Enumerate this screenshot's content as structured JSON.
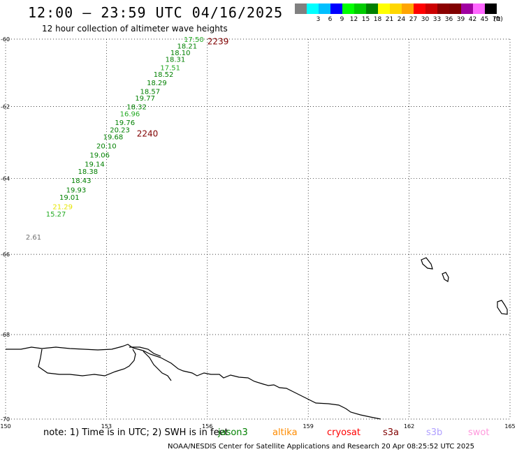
{
  "header": {
    "title": "12:00 – 23:59 UTC 04/16/2025",
    "subtitle": "12 hour collection of altimeter wave heights"
  },
  "color_scale": {
    "unit": "(ft)",
    "bins": [
      {
        "label": "",
        "color": "#808080"
      },
      {
        "label": "3",
        "color": "#00ffff"
      },
      {
        "label": "6",
        "color": "#00bfff"
      },
      {
        "label": "9",
        "color": "#0000ff"
      },
      {
        "label": "12",
        "color": "#00ff00"
      },
      {
        "label": "15",
        "color": "#00cc00"
      },
      {
        "label": "18",
        "color": "#008000"
      },
      {
        "label": "21",
        "color": "#ffff00"
      },
      {
        "label": "24",
        "color": "#ffd700"
      },
      {
        "label": "27",
        "color": "#ffa500"
      },
      {
        "label": "30",
        "color": "#ff0000"
      },
      {
        "label": "33",
        "color": "#cc0000"
      },
      {
        "label": "36",
        "color": "#8b0000"
      },
      {
        "label": "39",
        "color": "#800000"
      },
      {
        "label": "42",
        "color": "#a000a0"
      },
      {
        "label": "45",
        "color": "#ff66ff"
      },
      {
        "label": "70",
        "color": "#000000"
      }
    ]
  },
  "axes": {
    "lat_labels": [
      "-60",
      "-62",
      "-64",
      "-66",
      "-68",
      "-70"
    ],
    "lon_labels": [
      "150",
      "153",
      "156",
      "159",
      "162",
      "165"
    ]
  },
  "observations": [
    {
      "value": "17.50",
      "color": "#22aa22",
      "lon": 155.3,
      "lat": -60.0
    },
    {
      "value": "18.21",
      "color": "#008000",
      "lon": 155.1,
      "lat": -60.2
    },
    {
      "value": "18.10",
      "color": "#008000",
      "lon": 154.9,
      "lat": -60.4
    },
    {
      "value": "18.31",
      "color": "#008000",
      "lon": 154.75,
      "lat": -60.6
    },
    {
      "value": "17.51",
      "color": "#22aa22",
      "lon": 154.6,
      "lat": -60.85
    },
    {
      "value": "18.52",
      "color": "#008000",
      "lon": 154.4,
      "lat": -61.05
    },
    {
      "value": "18.29",
      "color": "#008000",
      "lon": 154.2,
      "lat": -61.3
    },
    {
      "value": "18.57",
      "color": "#008000",
      "lon": 154.0,
      "lat": -61.55
    },
    {
      "value": "19.77",
      "color": "#008000",
      "lon": 153.85,
      "lat": -61.75
    },
    {
      "value": "18.32",
      "color": "#008000",
      "lon": 153.6,
      "lat": -62.0
    },
    {
      "value": "16.96",
      "color": "#22aa22",
      "lon": 153.4,
      "lat": -62.2
    },
    {
      "value": "19.76",
      "color": "#008000",
      "lon": 153.25,
      "lat": -62.45
    },
    {
      "value": "20.23",
      "color": "#008000",
      "lon": 153.1,
      "lat": -62.65
    },
    {
      "value": "19.68",
      "color": "#008000",
      "lon": 152.9,
      "lat": -62.85
    },
    {
      "value": "20.10",
      "color": "#008000",
      "lon": 152.7,
      "lat": -63.1
    },
    {
      "value": "19.06",
      "color": "#008000",
      "lon": 152.5,
      "lat": -63.35
    },
    {
      "value": "19.14",
      "color": "#008000",
      "lon": 152.35,
      "lat": -63.6
    },
    {
      "value": "18.38",
      "color": "#008000",
      "lon": 152.15,
      "lat": -63.8
    },
    {
      "value": "18.43",
      "color": "#008000",
      "lon": 151.95,
      "lat": -64.05
    },
    {
      "value": "19.93",
      "color": "#008000",
      "lon": 151.8,
      "lat": -64.3
    },
    {
      "value": "19.01",
      "color": "#008000",
      "lon": 151.6,
      "lat": -64.5
    },
    {
      "value": "21.29",
      "color": "#e6e600",
      "lon": 151.4,
      "lat": -64.75
    },
    {
      "value": "15.27",
      "color": "#22aa22",
      "lon": 151.2,
      "lat": -64.95
    },
    {
      "value": "2.61",
      "color": "#707070",
      "lon": 150.6,
      "lat": -65.55
    }
  ],
  "pass_labels": [
    {
      "text": "2239",
      "color": "#800000",
      "lon": 156.0,
      "lat": -60.05
    },
    {
      "text": "2240",
      "color": "#800000",
      "lon": 153.9,
      "lat": -62.75
    }
  ],
  "footer": {
    "note": "note: 1) Time is in UTC; 2) SWH is in feet",
    "satellites": [
      {
        "name": "jason3",
        "color": "#008000"
      },
      {
        "name": "altika",
        "color": "#ff8c00"
      },
      {
        "name": "cryosat",
        "color": "#ff0000"
      },
      {
        "name": "s3a",
        "color": "#800000"
      },
      {
        "name": "s3b",
        "color": "#b0a0ff"
      },
      {
        "name": "swot",
        "color": "#ff99dd"
      }
    ],
    "credit": "NOAA/NESDIS Center for Satellite Applications and Research    20 Apr 08:25:52 UTC 2025"
  }
}
